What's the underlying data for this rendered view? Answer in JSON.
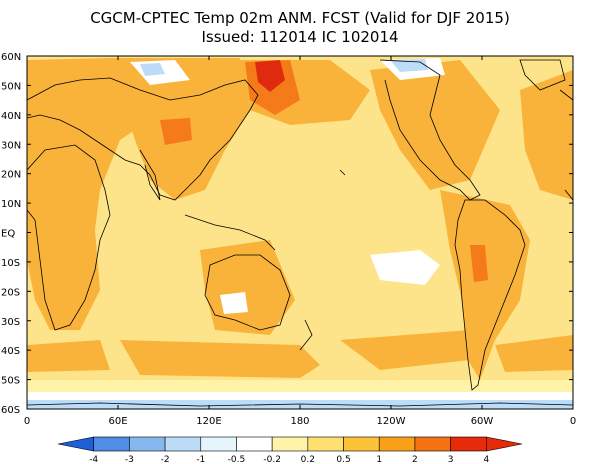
{
  "title": {
    "line1": "CGCM-CPTEC Temp 02m ANM. FCST  (Valid for DJF 2015)",
    "line2": "Issued:  112014 IC 102014"
  },
  "axes": {
    "lat_labels": [
      "60N",
      "50N",
      "40N",
      "30N",
      "20N",
      "10N",
      "EQ",
      "10S",
      "20S",
      "30S",
      "40S",
      "50S",
      "60S"
    ],
    "lon_labels": [
      "0",
      "60E",
      "120E",
      "180",
      "120W",
      "60W",
      "0"
    ]
  },
  "colorbar": {
    "labels": [
      "-4",
      "-3",
      "-2",
      "-1",
      "-0.5",
      "-0.2",
      "0.2",
      "0.5",
      "1",
      "2",
      "3",
      "4"
    ],
    "colors": [
      "#1f5fd6",
      "#4e8ee6",
      "#86b8f0",
      "#bcdcf8",
      "#e6f4fc",
      "#ffffff",
      "#fff3a8",
      "#fde070",
      "#fcc338",
      "#f8a018",
      "#f47212",
      "#e62a0a"
    ]
  },
  "palette": {
    "ocean_base": "#fde48a",
    "warm": "#f9b33a",
    "hot": "#f47a1a",
    "extreme": "#e02a10",
    "cool": "#ffffff",
    "cold": "#bcdcf8",
    "coast": "#000000"
  }
}
